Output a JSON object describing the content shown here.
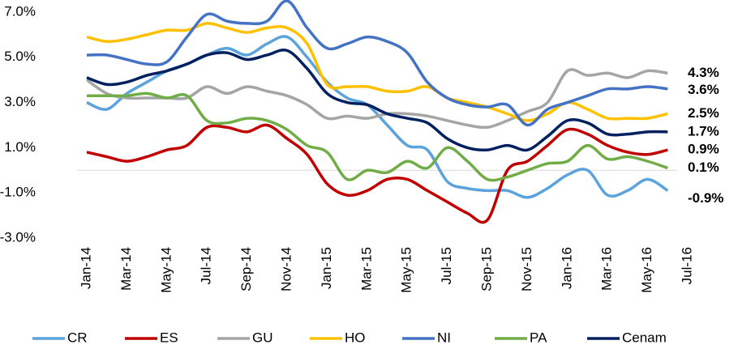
{
  "chart_data": {
    "type": "line",
    "categories": [
      "Jan-14",
      null,
      "Mar-14",
      null,
      "May-14",
      null,
      "Jul-14",
      null,
      "Sep-14",
      null,
      "Nov-14",
      null,
      "Jan-15",
      null,
      "Mar-15",
      null,
      "May-15",
      null,
      "Jul-15",
      null,
      "Sep-15",
      null,
      "Nov-15",
      null,
      "Jan-16",
      null,
      "Mar-16",
      null,
      "May-16",
      null,
      "Jul-16"
    ],
    "ylim": [
      -3,
      7.5
    ],
    "yticks": [
      {
        "value": -3,
        "label": "-3.0%"
      },
      {
        "value": -1,
        "label": "-1.0%"
      },
      {
        "value": 1,
        "label": "1.0%"
      },
      {
        "value": 3,
        "label": "3.0%"
      },
      {
        "value": 5,
        "label": "5.0%"
      },
      {
        "value": 7,
        "label": "7.0%"
      }
    ],
    "legend": "bottom",
    "series": [
      {
        "name": "CR",
        "color": "#5ba3dc",
        "label": "-0.9%",
        "values": [
          3.0,
          2.7,
          3.4,
          3.9,
          4.4,
          4.7,
          5.1,
          5.4,
          5.1,
          5.6,
          5.9,
          5.0,
          3.9,
          3.2,
          2.9,
          2.0,
          1.1,
          0.9,
          -0.5,
          -0.8,
          -0.9,
          -0.9,
          -1.2,
          -0.8,
          -0.2,
          0.0,
          -1.1,
          -0.9,
          -0.4,
          -0.9,
          null
        ]
      },
      {
        "name": "ES",
        "color": "#c00000",
        "label": "0.9%",
        "values": [
          0.8,
          0.6,
          0.4,
          0.6,
          0.9,
          1.1,
          1.9,
          1.9,
          1.7,
          2.0,
          1.4,
          0.7,
          -0.6,
          -1.1,
          -0.9,
          -0.4,
          -0.4,
          -0.9,
          -1.4,
          -1.9,
          -2.2,
          0.0,
          0.4,
          1.1,
          1.8,
          1.6,
          1.1,
          0.8,
          0.7,
          0.9,
          null
        ]
      },
      {
        "name": "GU",
        "color": "#a5a5a5",
        "label": "4.3%",
        "values": [
          4.0,
          3.4,
          3.2,
          3.2,
          3.2,
          3.2,
          3.7,
          3.4,
          3.7,
          3.5,
          3.3,
          2.9,
          2.3,
          2.4,
          2.3,
          2.5,
          2.5,
          2.4,
          2.2,
          2.0,
          1.9,
          2.2,
          2.6,
          3.0,
          4.4,
          4.2,
          4.3,
          4.1,
          4.4,
          4.3,
          null
        ]
      },
      {
        "name": "HO",
        "color": "#ffc000",
        "label": "2.5%",
        "values": [
          5.9,
          5.7,
          5.8,
          6.0,
          6.2,
          6.2,
          6.5,
          6.3,
          6.1,
          6.3,
          6.3,
          5.6,
          3.8,
          3.7,
          3.7,
          3.5,
          3.5,
          3.7,
          3.2,
          3.0,
          2.8,
          2.5,
          2.2,
          2.5,
          3.0,
          2.7,
          2.3,
          2.3,
          2.3,
          2.5,
          null
        ]
      },
      {
        "name": "NI",
        "color": "#4472c4",
        "label": "3.6%",
        "values": [
          5.1,
          5.1,
          4.9,
          4.7,
          4.8,
          5.9,
          6.9,
          6.6,
          6.5,
          6.6,
          7.5,
          6.3,
          5.4,
          5.6,
          5.9,
          5.7,
          5.2,
          3.9,
          3.2,
          2.9,
          2.8,
          2.9,
          2.0,
          2.7,
          3.0,
          3.3,
          3.6,
          3.6,
          3.7,
          3.6,
          null
        ]
      },
      {
        "name": "PA",
        "color": "#70ad47",
        "label": "0.1%",
        "values": [
          3.3,
          3.3,
          3.3,
          3.4,
          3.2,
          3.3,
          2.2,
          2.1,
          2.3,
          2.2,
          1.8,
          1.1,
          0.8,
          -0.4,
          0.0,
          -0.1,
          0.4,
          0.1,
          1.0,
          0.4,
          -0.4,
          -0.3,
          0.0,
          0.3,
          0.4,
          1.1,
          0.5,
          0.6,
          0.4,
          0.1,
          null
        ]
      },
      {
        "name": "Cenam",
        "color": "#002060",
        "label": "1.7%",
        "values": [
          4.1,
          3.8,
          3.9,
          4.2,
          4.4,
          4.7,
          5.1,
          5.2,
          4.9,
          5.1,
          5.3,
          4.5,
          3.4,
          3.0,
          2.9,
          2.5,
          2.3,
          2.1,
          1.4,
          1.0,
          0.9,
          1.1,
          0.9,
          1.5,
          2.2,
          2.1,
          1.6,
          1.6,
          1.7,
          1.7,
          null
        ]
      }
    ]
  }
}
